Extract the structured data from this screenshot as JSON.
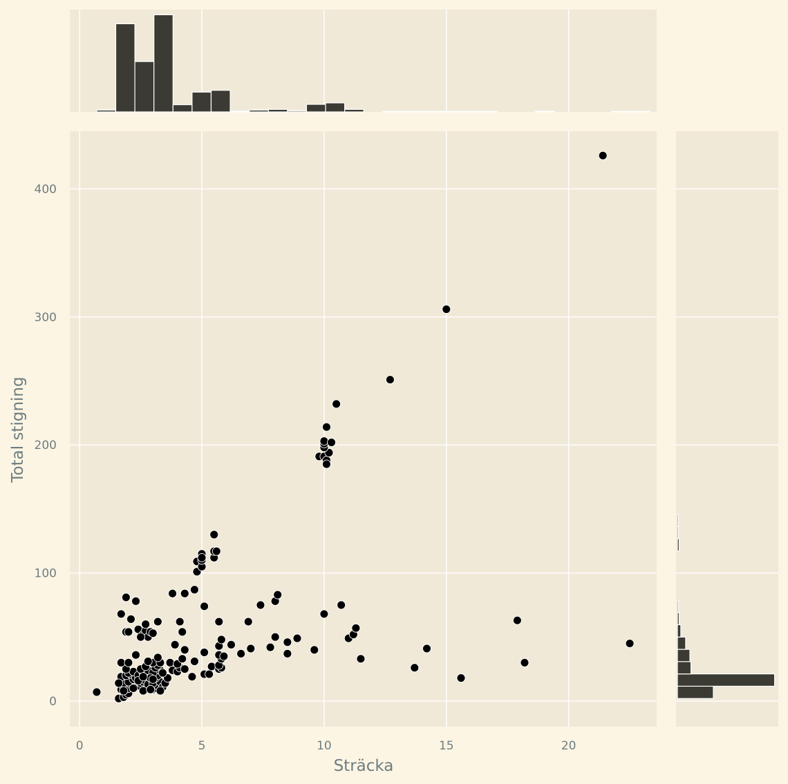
{
  "chart_data": {
    "type": "scatter",
    "title": "",
    "xlabel": "Sträcka",
    "ylabel": "Total stigning",
    "xlim": [
      -0.4,
      23.6
    ],
    "ylim": [
      -20,
      445
    ],
    "xticks": [
      0,
      5,
      10,
      15,
      20
    ],
    "yticks": [
      0,
      100,
      200,
      300,
      400
    ],
    "grid": true,
    "colors": {
      "background": "#fdf5e4",
      "panel": "#f0e9d8",
      "grid": "#ffffff",
      "point": "#000000",
      "bar": "#3b3a33",
      "text": "#6e7d80"
    },
    "points": [
      [
        0.7,
        7
      ],
      [
        1.6,
        2
      ],
      [
        1.8,
        3
      ],
      [
        1.9,
        5
      ],
      [
        2.0,
        6
      ],
      [
        1.7,
        9
      ],
      [
        1.8,
        11
      ],
      [
        1.9,
        12
      ],
      [
        2.0,
        10
      ],
      [
        2.1,
        13
      ],
      [
        1.8,
        14
      ],
      [
        2.0,
        15
      ],
      [
        2.2,
        17
      ],
      [
        1.7,
        19
      ],
      [
        1.9,
        20
      ],
      [
        2.1,
        21
      ],
      [
        2.3,
        18
      ],
      [
        2.0,
        22
      ],
      [
        2.2,
        23
      ],
      [
        1.9,
        25
      ],
      [
        2.4,
        12
      ],
      [
        2.5,
        14
      ],
      [
        2.6,
        15
      ],
      [
        2.7,
        16
      ],
      [
        2.8,
        13
      ],
      [
        2.4,
        20
      ],
      [
        2.6,
        22
      ],
      [
        2.8,
        24
      ],
      [
        2.5,
        25
      ],
      [
        2.7,
        27
      ],
      [
        3.0,
        9
      ],
      [
        3.1,
        10
      ],
      [
        3.2,
        12
      ],
      [
        3.0,
        14
      ],
      [
        3.3,
        15
      ],
      [
        3.1,
        18
      ],
      [
        3.2,
        20
      ],
      [
        3.0,
        22
      ],
      [
        3.3,
        24
      ],
      [
        3.1,
        26
      ],
      [
        3.4,
        11
      ],
      [
        3.5,
        14
      ],
      [
        3.6,
        18
      ],
      [
        3.4,
        22
      ],
      [
        3.2,
        28
      ],
      [
        3.0,
        30
      ],
      [
        2.8,
        31
      ],
      [
        3.3,
        30
      ],
      [
        2.3,
        36
      ],
      [
        3.2,
        34
      ],
      [
        2.6,
        8
      ],
      [
        2.9,
        9
      ],
      [
        3.3,
        8
      ],
      [
        2.2,
        10
      ],
      [
        2.4,
        16
      ],
      [
        2.9,
        18
      ],
      [
        2.6,
        19
      ],
      [
        3.0,
        17
      ],
      [
        1.6,
        14
      ],
      [
        1.8,
        8
      ],
      [
        1.7,
        30
      ],
      [
        2.0,
        30
      ],
      [
        2.4,
        56
      ],
      [
        2.6,
        52
      ],
      [
        2.7,
        55
      ],
      [
        2.7,
        60
      ],
      [
        2.8,
        50
      ],
      [
        2.9,
        54
      ],
      [
        3.0,
        53
      ],
      [
        2.5,
        50
      ],
      [
        1.9,
        54
      ],
      [
        2.0,
        54
      ],
      [
        1.7,
        68
      ],
      [
        2.1,
        64
      ],
      [
        2.3,
        78
      ],
      [
        1.9,
        81
      ],
      [
        3.2,
        62
      ],
      [
        3.7,
        30
      ],
      [
        3.8,
        24
      ],
      [
        4.0,
        23
      ],
      [
        4.1,
        26
      ],
      [
        4.0,
        29
      ],
      [
        4.2,
        33
      ],
      [
        4.3,
        25
      ],
      [
        3.9,
        44
      ],
      [
        4.3,
        40
      ],
      [
        4.2,
        54
      ],
      [
        4.1,
        62
      ],
      [
        3.8,
        84
      ],
      [
        4.3,
        84
      ],
      [
        4.6,
        19
      ],
      [
        4.7,
        31
      ],
      [
        5.1,
        21
      ],
      [
        5.3,
        21
      ],
      [
        5.4,
        27
      ],
      [
        5.1,
        38
      ],
      [
        5.7,
        25
      ],
      [
        5.8,
        26
      ],
      [
        5.7,
        28
      ],
      [
        5.8,
        33
      ],
      [
        5.7,
        36
      ],
      [
        5.9,
        35
      ],
      [
        5.7,
        43
      ],
      [
        5.8,
        48
      ],
      [
        5.7,
        62
      ],
      [
        6.2,
        44
      ],
      [
        6.6,
        37
      ],
      [
        4.7,
        87
      ],
      [
        5.1,
        74
      ],
      [
        4.8,
        101
      ],
      [
        4.8,
        109
      ],
      [
        5.0,
        105
      ],
      [
        5.0,
        110
      ],
      [
        5.0,
        113
      ],
      [
        5.0,
        115
      ],
      [
        5.0,
        112
      ],
      [
        5.5,
        112
      ],
      [
        5.5,
        117
      ],
      [
        5.6,
        117
      ],
      [
        5.5,
        130
      ],
      [
        6.9,
        62
      ],
      [
        7.0,
        41
      ],
      [
        7.4,
        75
      ],
      [
        7.8,
        42
      ],
      [
        8.0,
        50
      ],
      [
        8.0,
        78
      ],
      [
        8.1,
        83
      ],
      [
        8.5,
        46
      ],
      [
        8.5,
        37
      ],
      [
        8.9,
        49
      ],
      [
        9.6,
        40
      ],
      [
        10.0,
        68
      ],
      [
        10.7,
        75
      ],
      [
        11.0,
        49
      ],
      [
        11.2,
        52
      ],
      [
        11.3,
        57
      ],
      [
        11.5,
        33
      ],
      [
        9.8,
        191
      ],
      [
        10.0,
        191
      ],
      [
        10.1,
        188
      ],
      [
        10.1,
        185
      ],
      [
        10.2,
        194
      ],
      [
        10.0,
        198
      ],
      [
        10.0,
        201
      ],
      [
        10.0,
        203
      ],
      [
        10.3,
        202
      ],
      [
        10.1,
        214
      ],
      [
        10.5,
        232
      ],
      [
        12.7,
        251
      ],
      [
        13.7,
        26
      ],
      [
        14.2,
        41
      ],
      [
        15.0,
        306
      ],
      [
        15.6,
        18
      ],
      [
        17.9,
        63
      ],
      [
        18.2,
        30
      ],
      [
        21.4,
        426
      ],
      [
        22.5,
        45
      ]
    ],
    "marginal_x": {
      "bin_edges_start": 0.7,
      "bin_width": 0.78,
      "counts": [
        1,
        49,
        28,
        54,
        4,
        11,
        12,
        0.4,
        1,
        1.4,
        0.6,
        4.2,
        5,
        1.4,
        0,
        0.3,
        0.3,
        0.3,
        0.3,
        0.3,
        0.3,
        0,
        0,
        0.4,
        0,
        0,
        0,
        0.3,
        0.3,
        0
      ],
      "max_count": 54
    },
    "marginal_y": {
      "bin_edges_start": 2,
      "bin_height": 9.6,
      "counts": [
        17,
        46,
        6.4,
        5.9,
        3.9,
        1.6,
        0.8,
        0.5,
        0,
        0,
        0,
        0,
        0.8,
        0.5,
        0.5,
        0,
        0,
        0,
        0,
        0,
        0,
        0,
        0,
        0,
        0,
        0,
        0,
        0,
        0,
        0,
        0,
        0,
        0,
        0,
        0,
        0,
        0,
        0,
        0,
        0,
        0,
        0,
        0,
        0,
        0
      ],
      "max_count": 46
    }
  }
}
